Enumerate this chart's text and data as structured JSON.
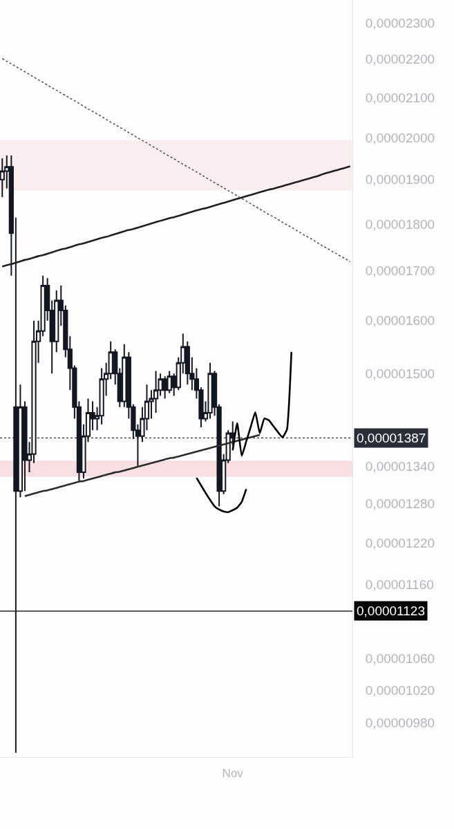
{
  "chart_data": {
    "type": "candlestick",
    "color": "#131722",
    "log": "y",
    "categories": [
      null,
      null,
      null,
      null,
      null,
      null,
      null,
      null,
      null,
      null,
      null,
      null,
      null,
      null,
      null,
      null,
      null,
      null,
      null,
      null,
      null,
      null,
      null,
      null,
      null,
      null,
      null,
      null,
      null,
      null,
      null,
      null,
      null,
      null,
      null,
      null,
      null,
      null,
      null,
      null,
      null,
      null,
      null,
      null,
      null,
      null,
      null,
      null,
      null,
      null,
      null,
      "Nov",
      null,
      null,
      null,
      null,
      null,
      null,
      null,
      null,
      null,
      null,
      null,
      null,
      null,
      null,
      null,
      null,
      null,
      null,
      null,
      null,
      null,
      null,
      null,
      null,
      null,
      null
    ],
    "ohlc": [
      [
        1.9e-05,
        1.95e-05,
        1.86e-05,
        1.92e-05
      ],
      [
        1.92e-05,
        1.957e-05,
        1.88e-05,
        1.93e-05
      ],
      [
        1.93e-05,
        1.957e-05,
        1.69e-05,
        1.78e-05
      ],
      [
        1.44e-05,
        1.814e-05,
        9.45e-06,
        1.3e-05
      ],
      [
        1.3e-05,
        1.48e-05,
        1.29e-05,
        1.44e-05
      ],
      [
        1.44e-05,
        1.45e-05,
        1.3e-05,
        1.35e-05
      ],
      [
        1.35e-05,
        1.38e-05,
        1.33e-05,
        1.36e-05
      ],
      [
        1.36e-05,
        1.6e-05,
        1.345e-05,
        1.56e-05
      ],
      [
        1.56e-05,
        1.6e-05,
        1.52e-05,
        1.58e-05
      ],
      [
        1.58e-05,
        1.69e-05,
        1.57e-05,
        1.67e-05
      ],
      [
        1.67e-05,
        1.685e-05,
        1.6e-05,
        1.62e-05
      ],
      [
        1.62e-05,
        1.64e-05,
        1.5e-05,
        1.56e-05
      ],
      [
        1.56e-05,
        1.66e-05,
        1.54e-05,
        1.64e-05
      ],
      [
        1.64e-05,
        1.67e-05,
        1.59e-05,
        1.62e-05
      ],
      [
        1.62e-05,
        1.63e-05,
        1.53e-05,
        1.545e-05
      ],
      [
        1.545e-05,
        1.57e-05,
        1.47e-05,
        1.51e-05
      ],
      [
        1.51e-05,
        1.515e-05,
        1.42e-05,
        1.44e-05
      ],
      [
        1.44e-05,
        1.45e-05,
        1.316e-05,
        1.33e-05
      ],
      [
        1.33e-05,
        1.41e-05,
        1.32e-05,
        1.39e-05
      ],
      [
        1.39e-05,
        1.455e-05,
        1.38e-05,
        1.43e-05
      ],
      [
        1.43e-05,
        1.45e-05,
        1.4e-05,
        1.42e-05
      ],
      [
        1.42e-05,
        1.44e-05,
        1.4e-05,
        1.425e-05
      ],
      [
        1.425e-05,
        1.51e-05,
        1.41e-05,
        1.49e-05
      ],
      [
        1.49e-05,
        1.52e-05,
        1.46e-05,
        1.5e-05
      ],
      [
        1.5e-05,
        1.56e-05,
        1.49e-05,
        1.54e-05
      ],
      [
        1.54e-05,
        1.545e-05,
        1.48e-05,
        1.5e-05
      ],
      [
        1.5e-05,
        1.51e-05,
        1.44e-05,
        1.45e-05
      ],
      [
        1.45e-05,
        1.555e-05,
        1.44e-05,
        1.53e-05
      ],
      [
        1.53e-05,
        1.54e-05,
        1.42e-05,
        1.44e-05
      ],
      [
        1.44e-05,
        1.445e-05,
        1.385e-05,
        1.4e-05
      ],
      [
        1.4e-05,
        1.41e-05,
        1.34e-05,
        1.39e-05
      ],
      [
        1.39e-05,
        1.44e-05,
        1.38e-05,
        1.42e-05
      ],
      [
        1.42e-05,
        1.48e-05,
        1.4e-05,
        1.45e-05
      ],
      [
        1.45e-05,
        1.47e-05,
        1.42e-05,
        1.455e-05
      ],
      [
        1.455e-05,
        1.505e-05,
        1.43e-05,
        1.47e-05
      ],
      [
        1.47e-05,
        1.5e-05,
        1.46e-05,
        1.49e-05
      ],
      [
        1.49e-05,
        1.495e-05,
        1.455e-05,
        1.47e-05
      ],
      [
        1.47e-05,
        1.505e-05,
        1.465e-05,
        1.495e-05
      ],
      [
        1.495e-05,
        1.5e-05,
        1.46e-05,
        1.475e-05
      ],
      [
        1.475e-05,
        1.53e-05,
        1.47e-05,
        1.52e-05
      ],
      [
        1.52e-05,
        1.575e-05,
        1.5e-05,
        1.55e-05
      ],
      [
        1.55e-05,
        1.56e-05,
        1.48e-05,
        1.5e-05
      ],
      [
        1.5e-05,
        1.53e-05,
        1.47e-05,
        1.49e-05
      ],
      [
        1.49e-05,
        1.51e-05,
        1.455e-05,
        1.47e-05
      ],
      [
        1.47e-05,
        1.475e-05,
        1.405e-05,
        1.42e-05
      ],
      [
        1.42e-05,
        1.45e-05,
        1.415e-05,
        1.43e-05
      ],
      [
        1.43e-05,
        1.52e-05,
        1.42e-05,
        1.5e-05
      ],
      [
        1.5e-05,
        1.505e-05,
        1.425e-05,
        1.44e-05
      ],
      [
        1.44e-05,
        1.445e-05,
        1.276e-05,
        1.3e-05
      ],
      [
        1.3e-05,
        1.36e-05,
        1.295e-05,
        1.35e-05
      ],
      [
        1.35e-05,
        1.4e-05,
        1.345e-05,
        1.395e-05
      ],
      [
        1.395e-05,
        1.415e-05,
        1.375e-05,
        1.387e-05
      ],
      null,
      null,
      null,
      null,
      null,
      null,
      null,
      null,
      null,
      null,
      null,
      null,
      null,
      null,
      null,
      null,
      null,
      null,
      null,
      null,
      null,
      null,
      null,
      null,
      null,
      null
    ],
    "series": [
      {
        "type": "line",
        "color": "#1f1f1f",
        "line_style": "solid",
        "values": [
          1.709e-05,
          1.712e-05,
          1.714e-05,
          1.717e-05,
          1.72e-05,
          1.723e-05,
          1.725e-05,
          1.728e-05,
          1.731e-05,
          1.733e-05,
          1.736e-05,
          1.739e-05,
          1.742e-05,
          1.745e-05,
          1.747e-05,
          1.75e-05,
          1.753e-05,
          1.756e-05,
          1.758e-05,
          1.761e-05,
          1.764e-05,
          1.767e-05,
          1.77e-05,
          1.772e-05,
          1.775e-05,
          1.778e-05,
          1.781e-05,
          1.784e-05,
          1.787e-05,
          1.789e-05,
          1.792e-05,
          1.795e-05,
          1.798e-05,
          1.801e-05,
          1.804e-05,
          1.807e-05,
          1.81e-05,
          1.813e-05,
          1.815e-05,
          1.818e-05,
          1.821e-05,
          1.824e-05,
          1.827e-05,
          1.83e-05,
          1.833e-05,
          1.835e-05,
          1.838e-05,
          1.841e-05,
          1.844e-05,
          1.847e-05,
          1.85e-05,
          1.853e-05,
          1.856e-05,
          1.859e-05,
          1.862e-05,
          1.865e-05,
          1.868e-05,
          1.871e-05,
          1.874e-05,
          1.877e-05,
          1.879e-05,
          1.882e-05,
          1.885e-05,
          1.888e-05,
          1.891e-05,
          1.894e-05,
          1.897e-05,
          1.9e-05,
          1.903e-05,
          1.906e-05,
          1.909e-05,
          1.913e-05,
          1.916e-05,
          1.919e-05,
          1.922e-05,
          1.925e-05,
          1.928e-05,
          1.931e-05
        ]
      },
      {
        "type": "line",
        "color": "#4a4a4a",
        "line_style": "dotted",
        "values": [
          2.202e-05,
          2.195e-05,
          2.188e-05,
          2.181e-05,
          2.174e-05,
          2.167e-05,
          2.16e-05,
          2.153e-05,
          2.146e-05,
          2.139e-05,
          2.132e-05,
          2.125e-05,
          2.119e-05,
          2.112e-05,
          2.105e-05,
          2.098e-05,
          2.092e-05,
          2.085e-05,
          2.078e-05,
          2.071e-05,
          2.065e-05,
          2.058e-05,
          2.052e-05,
          2.045e-05,
          2.038e-05,
          2.032e-05,
          2.025e-05,
          2.019e-05,
          2.012e-05,
          2.006e-05,
          1.999e-05,
          1.993e-05,
          1.987e-05,
          1.98e-05,
          1.974e-05,
          1.968e-05,
          1.961e-05,
          1.955e-05,
          1.949e-05,
          1.942e-05,
          1.936e-05,
          1.93e-05,
          1.924e-05,
          1.918e-05,
          1.912e-05,
          1.905e-05,
          1.899e-05,
          1.893e-05,
          1.887e-05,
          1.881e-05,
          1.875e-05,
          1.869e-05,
          1.863e-05,
          1.857e-05,
          1.851e-05,
          1.845e-05,
          1.839e-05,
          1.833e-05,
          1.827e-05,
          1.821e-05,
          1.816e-05,
          1.81e-05,
          1.804e-05,
          1.798e-05,
          1.793e-05,
          1.787e-05,
          1.781e-05,
          1.775e-05,
          1.77e-05,
          1.764e-05,
          1.758e-05,
          1.752e-05,
          1.747e-05,
          1.741e-05,
          1.736e-05,
          1.73e-05,
          1.725e-05,
          1.719e-05
        ]
      },
      {
        "type": "line",
        "color": "#2b2b2b",
        "line_style": "solid",
        "values": [
          null,
          null,
          null,
          null,
          null,
          1.292e-05,
          1.294e-05,
          1.296e-05,
          1.298e-05,
          1.3e-05,
          1.301e-05,
          1.303e-05,
          1.305e-05,
          1.307e-05,
          1.309e-05,
          1.311e-05,
          1.313e-05,
          1.315e-05,
          1.316e-05,
          1.318e-05,
          1.32e-05,
          1.322e-05,
          1.324e-05,
          1.326e-05,
          1.328e-05,
          1.33e-05,
          1.331e-05,
          1.333e-05,
          1.335e-05,
          1.337e-05,
          1.339e-05,
          1.341e-05,
          1.343e-05,
          1.345e-05,
          1.347e-05,
          1.349e-05,
          1.351e-05,
          1.353e-05,
          1.354e-05,
          1.356e-05,
          1.358e-05,
          1.36e-05,
          1.362e-05,
          1.364e-05,
          1.366e-05,
          1.368e-05,
          1.37e-05,
          1.372e-05,
          1.374e-05,
          1.376e-05,
          1.378e-05,
          1.38e-05,
          1.382e-05,
          1.384e-05,
          1.386e-05,
          1.388e-05,
          1.39e-05,
          1.392e-05,
          null,
          null,
          null,
          null,
          null,
          null,
          null,
          null,
          null,
          null,
          null,
          null,
          null,
          null,
          null,
          null,
          null,
          null,
          null,
          null
        ]
      },
      {
        "type": "line",
        "color": "#000000",
        "line_style": "solid",
        "values": [
          null,
          null,
          null,
          null,
          null,
          null,
          null,
          null,
          null,
          null,
          null,
          null,
          null,
          null,
          null,
          null,
          null,
          null,
          null,
          null,
          null,
          null,
          null,
          null,
          null,
          null,
          null,
          null,
          null,
          null,
          null,
          null,
          null,
          null,
          null,
          null,
          null,
          null,
          null,
          null,
          null,
          null,
          null,
          1.321e-05,
          1.309e-05,
          1.297e-05,
          1.286e-05,
          1.276e-05,
          1.271e-05,
          1.268e-05,
          1.267e-05,
          1.27e-05,
          1.274e-05,
          1.283e-05,
          1.303e-05,
          null,
          null,
          null,
          null,
          null,
          null,
          null,
          null,
          null,
          null,
          null,
          null,
          null,
          null,
          null,
          null,
          null,
          null,
          null,
          null,
          null,
          null,
          null
        ]
      },
      {
        "type": "line",
        "color": "#000000",
        "line_style": "solid",
        "values": [
          null,
          null,
          null,
          null,
          null,
          null,
          null,
          null,
          null,
          null,
          null,
          null,
          null,
          null,
          null,
          null,
          null,
          null,
          null,
          null,
          null,
          null,
          null,
          null,
          null,
          null,
          null,
          null,
          null,
          null,
          null,
          null,
          null,
          null,
          null,
          null,
          null,
          null,
          null,
          null,
          null,
          null,
          null,
          null,
          null,
          null,
          null,
          null,
          null,
          null,
          null,
          1.366e-05,
          1.412e-05,
          1.357e-05,
          1.381e-05,
          1.406e-05,
          1.431e-05,
          1.395e-05,
          1.42e-05,
          1.417e-05,
          1.407e-05,
          1.397e-05,
          1.388e-05,
          1.401e-05,
          1.54e-05,
          null,
          null,
          null,
          null,
          null,
          null,
          null,
          null,
          null,
          null,
          null,
          null,
          null
        ]
      }
    ],
    "ylim": [
      9.4e-06,
      2.365e-05
    ],
    "yticks": [
      {
        "value": 2.3e-05,
        "label": "0,00002300"
      },
      {
        "value": 2.2e-05,
        "label": "0,00002200"
      },
      {
        "value": 2.1e-05,
        "label": "0,00002100"
      },
      {
        "value": 2e-05,
        "label": "0,00002000"
      },
      {
        "value": 1.9e-05,
        "label": "0,00001900"
      },
      {
        "value": 1.8e-05,
        "label": "0,00001800"
      },
      {
        "value": 1.7e-05,
        "label": "0,00001700"
      },
      {
        "value": 1.6e-05,
        "label": "0,00001600"
      },
      {
        "value": 1.5e-05,
        "label": "0,00001500"
      },
      {
        "value": 1.34e-05,
        "label": "0,00001340"
      },
      {
        "value": 1.28e-05,
        "label": "0,00001280"
      },
      {
        "value": 1.22e-05,
        "label": "0,00001220"
      },
      {
        "value": 1.16e-05,
        "label": "0,00001160"
      },
      {
        "value": 1.06e-05,
        "label": "0,00001060"
      },
      {
        "value": 1.02e-05,
        "label": "0,00001020"
      },
      {
        "value": 9.8e-06,
        "label": "0,00000980"
      }
    ],
    "ref_lines": [
      {
        "axis": "y",
        "value": 1.387e-05,
        "label": "0,00001387",
        "color": "#2a2e39",
        "line_style": "dotted"
      },
      {
        "axis": "y",
        "value": 1.123e-05,
        "label": "0,00001123",
        "color": "#000000",
        "line_style": "solid"
      }
    ],
    "bands": [
      {
        "axis": "y",
        "from": 1.876e-05,
        "to": 1.994e-05,
        "color": "#f9eded"
      },
      {
        "axis": "y",
        "from": 1.323e-05,
        "to": 1.349e-05,
        "color": "#f8e0e2"
      }
    ]
  }
}
